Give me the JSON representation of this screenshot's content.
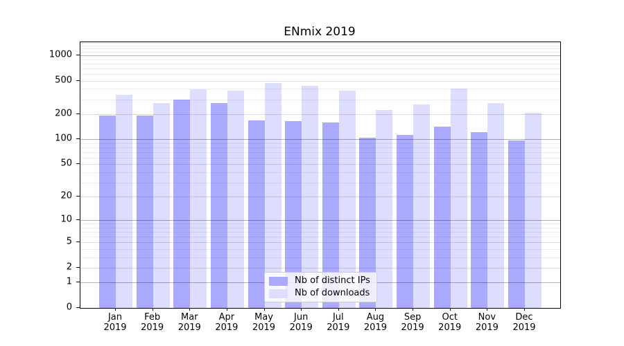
{
  "chart_data": {
    "type": "bar",
    "title": "ENmix 2019",
    "categories": [
      "Jan",
      "Feb",
      "Mar",
      "Apr",
      "May",
      "Jun",
      "Jul",
      "Aug",
      "Sep",
      "Oct",
      "Nov",
      "Dec"
    ],
    "category_year": "2019",
    "series": [
      {
        "name": "Nb of distinct IPs",
        "color": "#aaaaff",
        "values": [
          193,
          192,
          297,
          271,
          168,
          165,
          160,
          104,
          113,
          142,
          121,
          97
        ]
      },
      {
        "name": "Nb of downloads",
        "color": "#ddddff",
        "values": [
          340,
          270,
          398,
          380,
          468,
          436,
          380,
          225,
          260,
          400,
          270,
          207
        ]
      }
    ],
    "y_scale": "log1p",
    "ylim": [
      0,
      1435
    ],
    "y_max": 1435,
    "y_ticks_major": [
      0,
      1,
      2,
      5,
      10,
      20,
      50,
      100,
      200,
      500,
      1000
    ],
    "y_ticks_decade": [
      1,
      10,
      100,
      1000
    ],
    "y_ticks_minor": [
      3,
      4,
      6,
      7,
      8,
      9,
      30,
      40,
      60,
      70,
      80,
      90,
      300,
      400,
      600,
      700,
      800,
      900,
      1100,
      1200,
      1300,
      1400
    ],
    "grid": "both",
    "legend_position": "bottom-center"
  }
}
